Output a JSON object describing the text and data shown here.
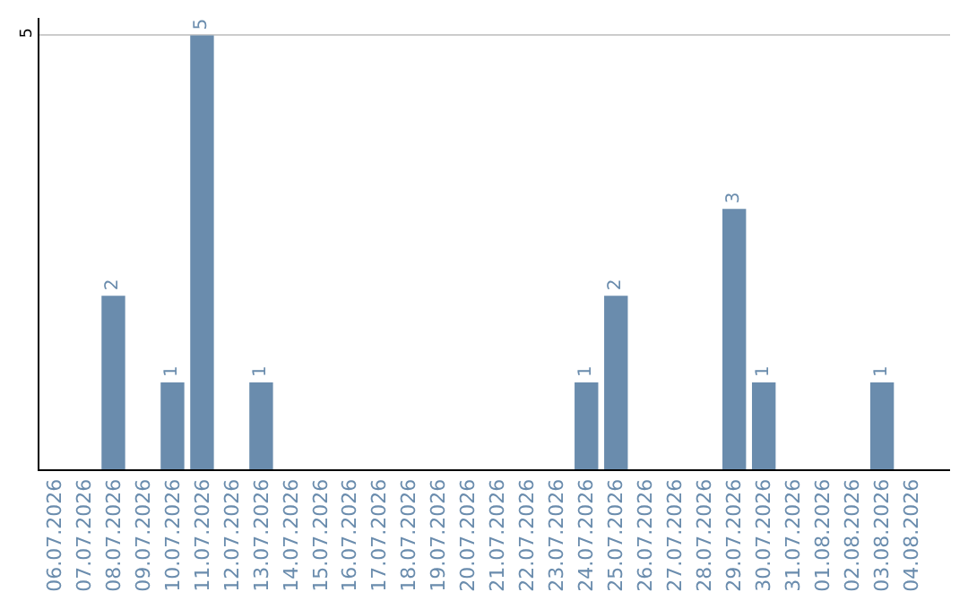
{
  "chart_data": {
    "type": "bar",
    "categories": [
      "06.07.2026",
      "07.07.2026",
      "08.07.2026",
      "09.07.2026",
      "10.07.2026",
      "11.07.2026",
      "12.07.2026",
      "13.07.2026",
      "14.07.2026",
      "15.07.2026",
      "16.07.2026",
      "17.07.2026",
      "18.07.2026",
      "19.07.2026",
      "20.07.2026",
      "21.07.2026",
      "22.07.2026",
      "23.07.2026",
      "24.07.2026",
      "25.07.2026",
      "26.07.2026",
      "27.07.2026",
      "28.07.2026",
      "29.07.2026",
      "30.07.2026",
      "31.07.2026",
      "01.08.2026",
      "02.08.2026",
      "03.08.2026",
      "04.08.2026"
    ],
    "values": [
      0,
      0,
      2,
      0,
      1,
      5,
      0,
      1,
      0,
      0,
      0,
      0,
      0,
      0,
      0,
      0,
      0,
      0,
      1,
      2,
      0,
      0,
      0,
      3,
      1,
      0,
      0,
      0,
      1,
      0
    ],
    "value_labels": [
      null,
      null,
      "2",
      null,
      "1",
      "5",
      null,
      "1",
      null,
      null,
      null,
      null,
      null,
      null,
      null,
      null,
      null,
      null,
      "1",
      "2",
      null,
      null,
      null,
      "3",
      "1",
      null,
      null,
      null,
      "1",
      null
    ],
    "color": "#6a8cad",
    "ylim": [
      0,
      5.2
    ],
    "yticks": [
      5
    ],
    "grid": "y",
    "legend": false
  }
}
